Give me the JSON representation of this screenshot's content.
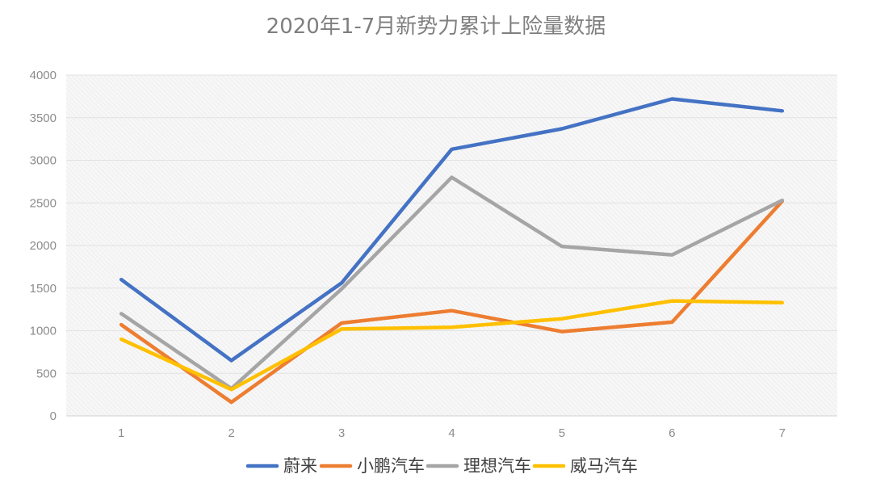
{
  "chart_data": {
    "type": "line",
    "title": "2020年1-7月新势力累计上险量数据",
    "xlabel": "",
    "ylabel": "",
    "x": [
      "1",
      "2",
      "3",
      "4",
      "5",
      "6",
      "7"
    ],
    "yticks": [
      "0",
      "500",
      "1000",
      "1500",
      "2000",
      "2500",
      "3000",
      "3500",
      "4000"
    ],
    "ylim": [
      0,
      4000
    ],
    "grid": true,
    "legend_position": "bottom",
    "series": [
      {
        "name": "蔚来",
        "color": "#4472c4",
        "values": [
          1600,
          650,
          1560,
          3130,
          3370,
          3720,
          3580
        ]
      },
      {
        "name": "小鹏汽车",
        "color": "#ed7d31",
        "values": [
          1070,
          160,
          1090,
          1235,
          990,
          1100,
          2520
        ]
      },
      {
        "name": "理想汽车",
        "color": "#a5a5a5",
        "values": [
          1200,
          320,
          1490,
          2800,
          1990,
          1890,
          2530
        ]
      },
      {
        "name": "威马汽车",
        "color": "#ffc000",
        "values": [
          900,
          310,
          1020,
          1040,
          1140,
          1350,
          1330
        ]
      }
    ]
  }
}
